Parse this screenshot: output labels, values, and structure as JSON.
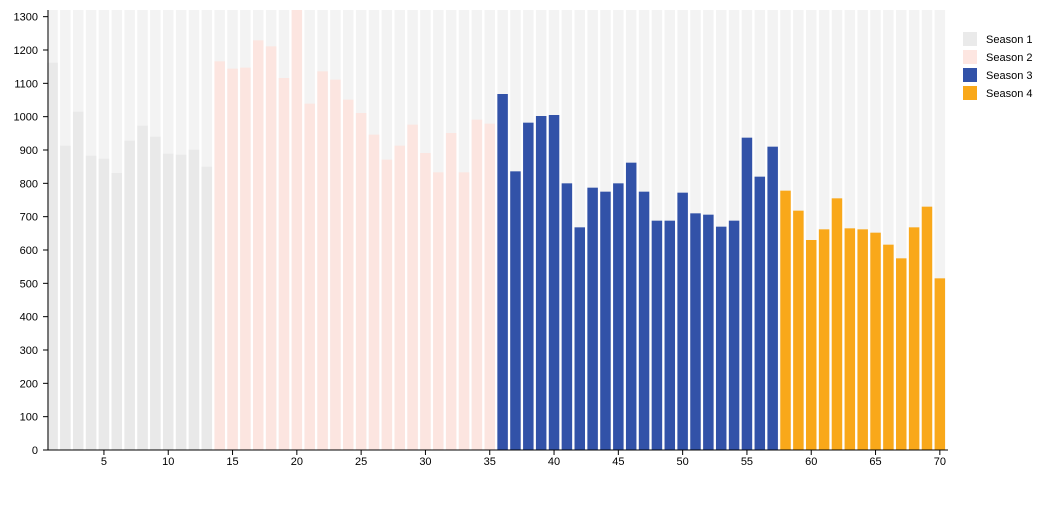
{
  "chart_data": {
    "type": "bar",
    "title": "",
    "xlabel": "",
    "ylabel": "",
    "ylim": [
      0,
      1320
    ],
    "xlim": [
      1,
      70
    ],
    "xticks": [
      5,
      10,
      15,
      20,
      25,
      30,
      35,
      40,
      45,
      50,
      55,
      60,
      65,
      70
    ],
    "yticks": [
      0,
      100,
      200,
      300,
      400,
      500,
      600,
      700,
      800,
      900,
      1000,
      1100,
      1200,
      1300
    ],
    "legend_position": "top-right",
    "grid": false,
    "series": [
      {
        "name": "Season 1",
        "color": "#e6e6e6",
        "highlighted": false,
        "x": [
          1,
          2,
          3,
          4,
          5,
          6,
          7,
          8,
          9,
          10,
          11,
          12,
          13
        ],
        "values": [
          1162,
          913,
          1015,
          883,
          874,
          831,
          928,
          973,
          940,
          889,
          886,
          901,
          850
        ]
      },
      {
        "name": "Season 2",
        "color": "#fde2dc",
        "highlighted": false,
        "x": [
          14,
          15,
          16,
          17,
          18,
          19,
          20,
          21,
          22,
          23,
          24,
          25,
          26,
          27,
          28,
          29,
          30,
          31,
          32,
          33,
          34,
          35
        ],
        "values": [
          1166,
          1144,
          1147,
          1229,
          1211,
          1116,
          1320,
          1039,
          1136,
          1111,
          1051,
          1011,
          946,
          871,
          913,
          976,
          891,
          833,
          951,
          833,
          991,
          979
        ]
      },
      {
        "name": "Season 3",
        "color": "#3252a8",
        "highlighted": true,
        "x": [
          36,
          37,
          38,
          39,
          40,
          41,
          42,
          43,
          44,
          45,
          46,
          47,
          48,
          49,
          50,
          51,
          52,
          53,
          54,
          55,
          56,
          57
        ],
        "values": [
          1068,
          836,
          982,
          1002,
          1005,
          800,
          668,
          787,
          775,
          800,
          862,
          775,
          688,
          688,
          772,
          710,
          706,
          670,
          688,
          937,
          820,
          910
        ]
      },
      {
        "name": "Season 4",
        "color": "#f9a81a",
        "highlighted": true,
        "x": [
          58,
          59,
          60,
          61,
          62,
          63,
          64,
          65,
          66,
          67,
          68,
          69,
          70
        ],
        "values": [
          778,
          718,
          630,
          662,
          755,
          665,
          662,
          652,
          616,
          575,
          668,
          730,
          515
        ]
      }
    ]
  }
}
